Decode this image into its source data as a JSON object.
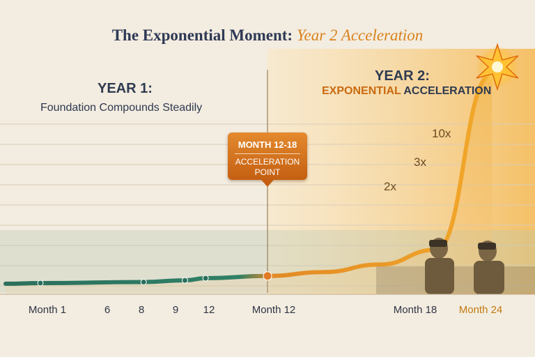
{
  "title": {
    "main": "The Exponential Moment:",
    "accent": "Year 2 Acceleration"
  },
  "year1": {
    "heading": "YEAR 1:",
    "subtitle": "Foundation Compounds Steadily"
  },
  "year2": {
    "heading": "YEAR 2:",
    "subtitle_accent": "EXPONENTIAL",
    "subtitle_rest": "ACCELERATION"
  },
  "callout": {
    "title": "MONTH 12-18",
    "line1": "ACCELERATION",
    "line2": "POINT"
  },
  "multipliers": [
    "2x",
    "3x",
    "10x"
  ],
  "colors": {
    "year1_line": "#2b6f5c",
    "year2_line": "#f0a62a",
    "accent": "#d9811a",
    "callout": "#d47420",
    "title": "#2e3a55"
  },
  "chart_data": {
    "type": "line",
    "title": "The Exponential Moment: Year 2 Acceleration",
    "xlabel": "",
    "ylabel": "",
    "x_ticks": [
      "Month 1",
      "6",
      "8",
      "9",
      "12",
      "Month 12",
      "Month 18",
      "Month 24"
    ],
    "highlighted_tick": "Month 24",
    "annotation": "MONTH 12-18 ACCELERATION POINT",
    "series": [
      {
        "x": [
          1,
          6,
          8,
          9,
          12,
          15,
          18,
          21,
          24
        ],
        "values": [
          1.0,
          1.08,
          1.2,
          1.35,
          1.5,
          1.75,
          2.2,
          3.0,
          10.0
        ]
      }
    ],
    "grid": true,
    "ylim": [
      0,
      10
    ]
  }
}
